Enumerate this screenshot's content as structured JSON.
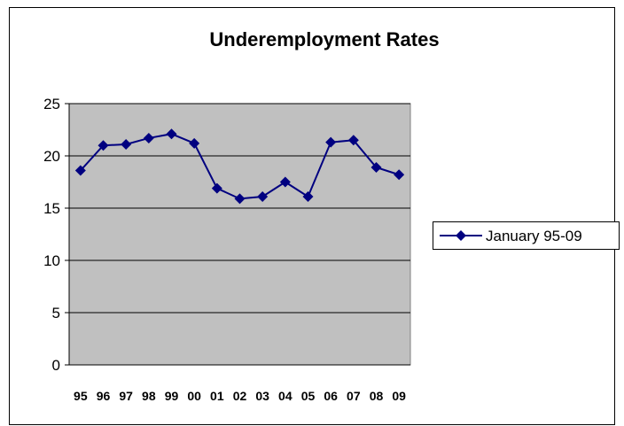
{
  "chart_data": {
    "type": "line",
    "title": "Underemployment Rates",
    "xlabel": "",
    "ylabel": "",
    "categories": [
      "95",
      "96",
      "97",
      "98",
      "99",
      "00",
      "01",
      "02",
      "03",
      "04",
      "05",
      "06",
      "07",
      "08",
      "09"
    ],
    "series": [
      {
        "name": "January 95-09",
        "values": [
          18.6,
          21.0,
          21.1,
          21.7,
          22.1,
          21.2,
          16.9,
          15.9,
          16.1,
          17.5,
          16.1,
          21.3,
          21.5,
          18.9,
          18.2
        ]
      }
    ],
    "ylim": [
      0,
      25
    ],
    "yticks": [
      0,
      5,
      10,
      15,
      20,
      25
    ],
    "grid": true,
    "legend": "right",
    "colors": {
      "plot_background": "#c0c0c0",
      "series_line": "#000080",
      "gridline": "#000000"
    }
  }
}
